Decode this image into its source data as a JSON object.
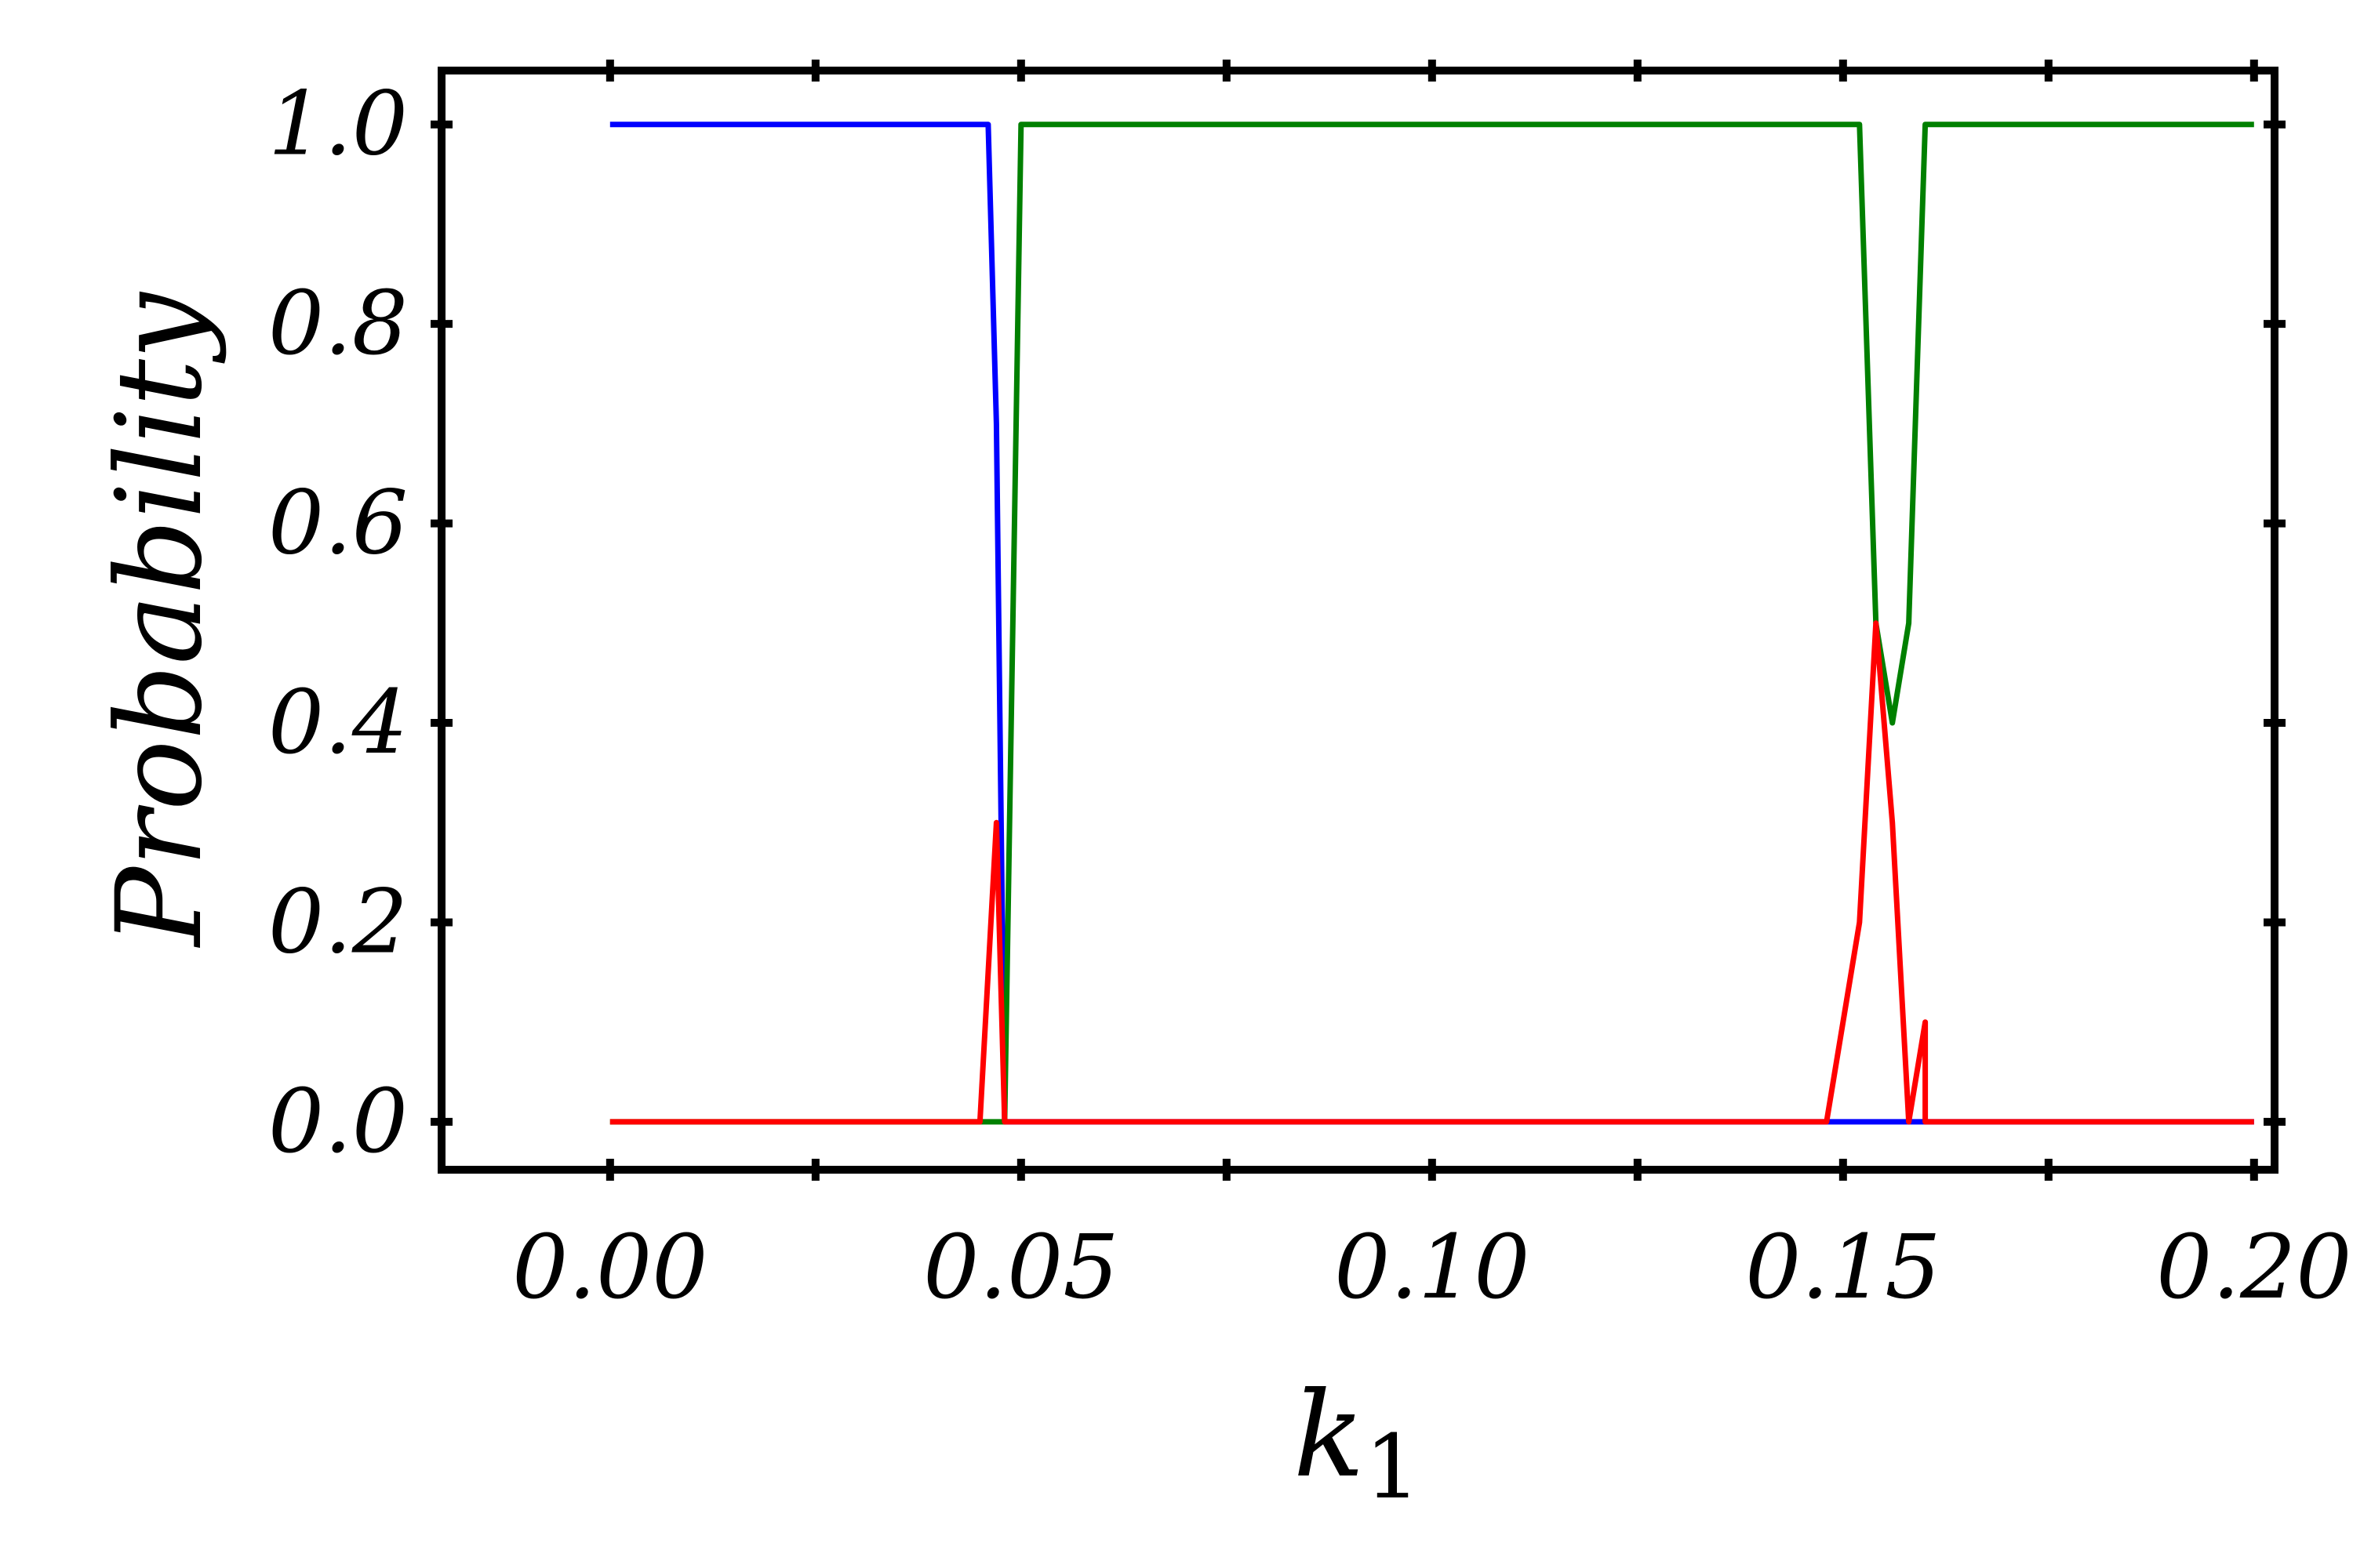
{
  "chart_data": {
    "type": "line",
    "title": "",
    "xlabel": "k",
    "xlabel_subscript": "1",
    "ylabel": "Probability",
    "xlim": [
      -0.0205,
      0.2025
    ],
    "ylim": [
      -0.048,
      1.054
    ],
    "xticks": [
      0.0,
      0.025,
      0.05,
      0.075,
      0.1,
      0.125,
      0.15,
      0.175,
      0.2
    ],
    "xtick_labels": [
      "0.00",
      "0.05",
      "0.10",
      "0.15",
      "0.20"
    ],
    "xtick_label_values": [
      0.0,
      0.05,
      0.1,
      0.15,
      0.2
    ],
    "yticks": [
      0.0,
      0.2,
      0.4,
      0.6,
      0.8,
      1.0
    ],
    "ytick_labels": [
      "0.0",
      "0.2",
      "0.4",
      "0.6",
      "0.8",
      "1.0"
    ],
    "grid": false,
    "legend": "none",
    "series": [
      {
        "color": "#0000ff",
        "x": [
          0.0,
          0.046,
          0.047,
          0.048,
          0.05,
          0.148,
          0.159,
          0.16,
          0.2
        ],
        "y": [
          1.0,
          1.0,
          0.7,
          0.0,
          0.0,
          0.0,
          0.0,
          0.0,
          0.0
        ]
      },
      {
        "color": "#008000",
        "x": [
          0.0,
          0.046,
          0.047,
          0.048,
          0.05,
          0.152,
          0.154,
          0.156,
          0.158,
          0.16,
          0.2
        ],
        "y": [
          0.0,
          0.0,
          0.0,
          0.0,
          1.0,
          1.0,
          0.5,
          0.4,
          0.5,
          1.0,
          1.0
        ]
      },
      {
        "color": "#ff0000",
        "x": [
          0.0,
          0.045,
          0.047,
          0.048,
          0.05,
          0.148,
          0.152,
          0.154,
          0.156,
          0.158,
          0.16,
          0.16,
          0.2
        ],
        "y": [
          0.0,
          0.0,
          0.3,
          0.0,
          0.0,
          0.0,
          0.2,
          0.5,
          0.3,
          0.0,
          0.1,
          0.0,
          0.0
        ]
      }
    ]
  }
}
